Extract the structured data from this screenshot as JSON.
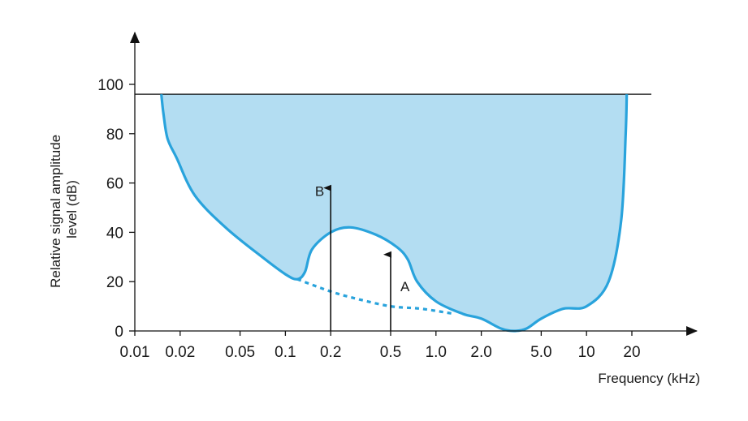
{
  "chart_data": {
    "type": "area",
    "xlabel": "Frequency (kHz)",
    "ylabel": [
      "Relative signal amplitude",
      "level (dB)"
    ],
    "x_scale": "log",
    "xlim": [
      0.01,
      20
    ],
    "ylim": [
      0,
      100
    ],
    "x_ticks": [
      0.01,
      0.02,
      0.05,
      0.1,
      0.2,
      0.5,
      1.0,
      2.0,
      5.0,
      10,
      20
    ],
    "x_tick_labels": [
      "0.01",
      "0.02",
      "0.05",
      "0.1",
      "0.2",
      "0.5",
      "1.0",
      "2.0",
      "5.0",
      "10",
      "20"
    ],
    "y_ticks": [
      0,
      20,
      40,
      60,
      80,
      100
    ],
    "y_tick_labels": [
      "0",
      "20",
      "40",
      "60",
      "80",
      "100"
    ],
    "upper_level": 96,
    "colors": {
      "fill": "#b3ddf2",
      "curve": "#29a3dc",
      "ink": "#111111"
    },
    "audibility_curve": [
      {
        "x": 0.015,
        "y": 96
      },
      {
        "x": 0.0155,
        "y": 88
      },
      {
        "x": 0.0165,
        "y": 78
      },
      {
        "x": 0.019,
        "y": 70
      },
      {
        "x": 0.025,
        "y": 55
      },
      {
        "x": 0.04,
        "y": 42
      },
      {
        "x": 0.07,
        "y": 30
      },
      {
        "x": 0.1,
        "y": 23
      },
      {
        "x": 0.12,
        "y": 21
      },
      {
        "x": 0.135,
        "y": 24
      },
      {
        "x": 0.15,
        "y": 33
      },
      {
        "x": 0.2,
        "y": 40
      },
      {
        "x": 0.27,
        "y": 42
      },
      {
        "x": 0.4,
        "y": 39
      },
      {
        "x": 0.55,
        "y": 34
      },
      {
        "x": 0.65,
        "y": 29
      },
      {
        "x": 0.75,
        "y": 20
      },
      {
        "x": 1.0,
        "y": 12
      },
      {
        "x": 1.5,
        "y": 7
      },
      {
        "x": 2.0,
        "y": 5
      },
      {
        "x": 2.7,
        "y": 1
      },
      {
        "x": 3.3,
        "y": 0
      },
      {
        "x": 4.0,
        "y": 1
      },
      {
        "x": 5.0,
        "y": 5
      },
      {
        "x": 7.0,
        "y": 9
      },
      {
        "x": 10,
        "y": 10
      },
      {
        "x": 14,
        "y": 20
      },
      {
        "x": 17,
        "y": 45
      },
      {
        "x": 18.2,
        "y": 80
      },
      {
        "x": 18.5,
        "y": 96
      }
    ],
    "masked_threshold": [
      {
        "x": 0.12,
        "y": 21
      },
      {
        "x": 0.2,
        "y": 16
      },
      {
        "x": 0.3,
        "y": 13
      },
      {
        "x": 0.5,
        "y": 10
      },
      {
        "x": 0.8,
        "y": 9
      },
      {
        "x": 1.3,
        "y": 7
      }
    ],
    "markers": [
      {
        "label": "B",
        "x": 0.2,
        "y": 58
      },
      {
        "label": "A",
        "x": 0.5,
        "y": 31
      }
    ]
  }
}
